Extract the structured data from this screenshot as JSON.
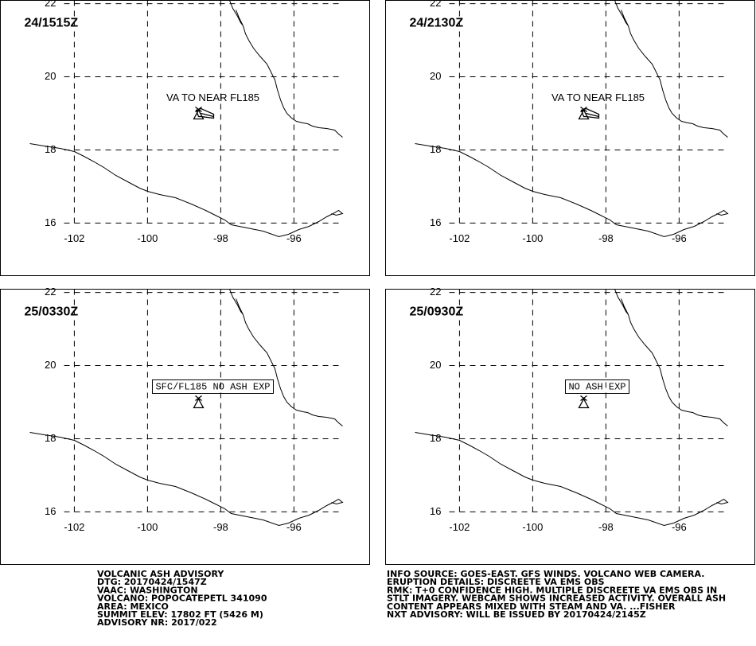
{
  "panels": [
    {
      "time": "24/1515Z",
      "annotation": "VA TO NEAR FL185"
    },
    {
      "time": "24/2130Z",
      "annotation": "VA TO NEAR FL185"
    },
    {
      "time": "25/0330Z",
      "annotation": "SFC/FL185 NO ASH EXP"
    },
    {
      "time": "25/0930Z",
      "annotation": "NO ASH EXP"
    }
  ],
  "map": {
    "xlim": [
      -104.02,
      -93.91
    ],
    "ylim": [
      14.54,
      22.09
    ],
    "xticks": [
      -102,
      -100,
      -98,
      -96
    ],
    "yticks": [
      16,
      18,
      20,
      22
    ]
  },
  "advisory_left": [
    "VOLCANIC ASH ADVISORY",
    "DTG: 20170424/1547Z",
    "VAAC: WASHINGTON",
    "VOLCANO: POPOCATEPETL 341090",
    "AREA: MEXICO",
    "SUMMIT ELEV: 17802 FT (5426 M)",
    "ADVISORY NR: 2017/022"
  ],
  "advisory_right": [
    "INFO SOURCE: GOES-EAST. GFS WINDS. VOLCANO WEB CAMERA.",
    "ERUPTION DETAILS: DISCREETE VA EMS OBS",
    "RMK: T+0 CONFIDENCE HIGH. MULTIPLE DISCREETE VA EMS OBS IN",
    "STLT IMAGERY. WEBCAM SHOWS INCREASED ACTIVITY. OVERALL ASH",
    "CONTENT APPEARS MIXED WITH STEAM AND VA. ...FISHER",
    "NXT ADVISORY: WILL BE ISSUED BY 20170424/2145Z"
  ]
}
